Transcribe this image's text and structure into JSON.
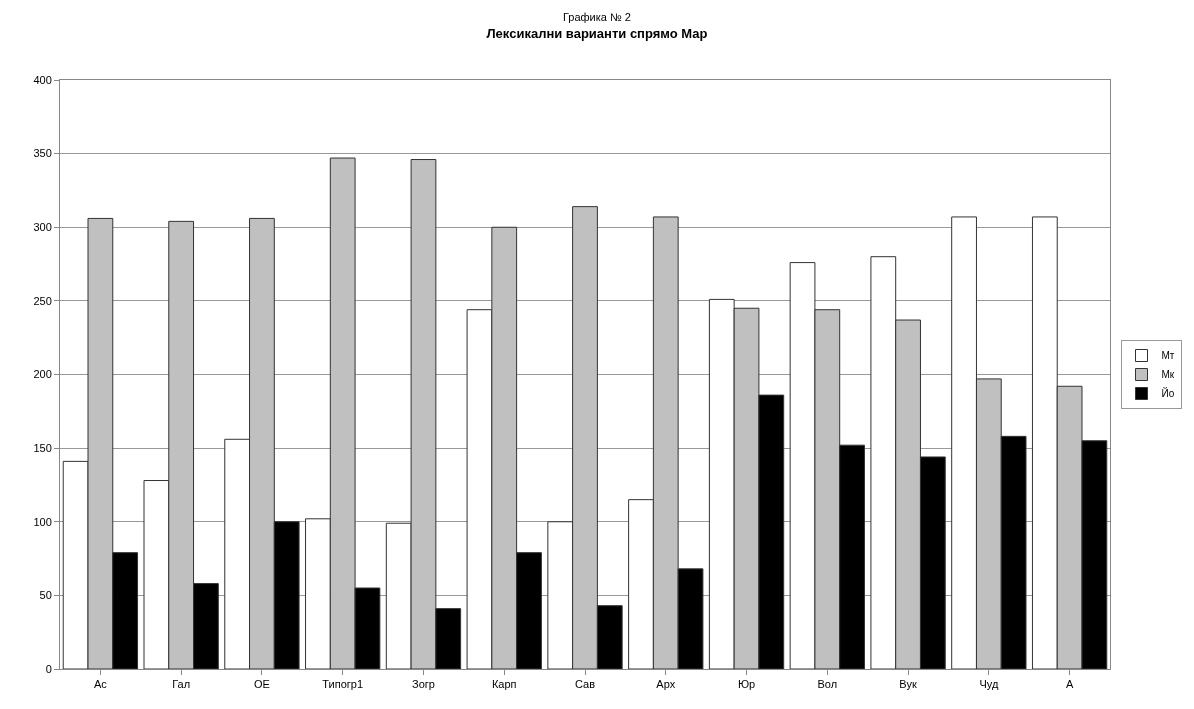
{
  "chart_data": {
    "type": "bar",
    "subtitle": "Графика № 2",
    "title": "Лексикални варианти спрямо Мар",
    "categories": [
      "Ас",
      "Гал",
      "ОЕ",
      "Типогр1",
      "Зогр",
      "Карп",
      "Сав",
      "Арх",
      "Юр",
      "Вол",
      "Вук",
      "Чуд",
      "А"
    ],
    "series": [
      {
        "name": "Мт",
        "color": "#ffffff",
        "values": [
          141,
          128,
          156,
          102,
          99,
          244,
          100,
          115,
          251,
          276,
          280,
          307,
          307
        ]
      },
      {
        "name": "Мк",
        "color": "#c0c0c0",
        "values": [
          306,
          304,
          306,
          347,
          346,
          300,
          314,
          307,
          245,
          244,
          237,
          197,
          192
        ]
      },
      {
        "name": "Йо",
        "color": "#000000",
        "values": [
          79,
          58,
          100,
          55,
          41,
          79,
          43,
          68,
          186,
          152,
          144,
          158,
          155
        ]
      }
    ],
    "ylim": [
      0,
      400
    ],
    "yticks": [
      0,
      50,
      100,
      150,
      200,
      250,
      300,
      350,
      400
    ],
    "grid": "y",
    "legend": "right"
  }
}
